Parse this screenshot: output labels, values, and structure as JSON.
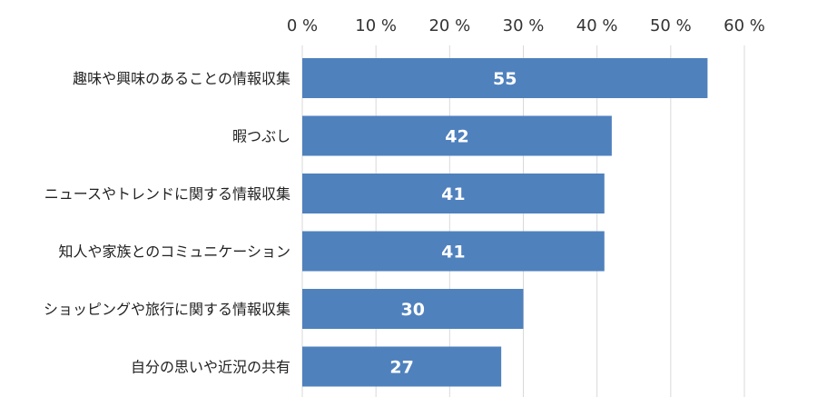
{
  "chart_data": {
    "type": "bar",
    "orientation": "horizontal",
    "categories": [
      "趣味や興味のあることの情報収集",
      "暇つぶし",
      "ニュースやトレンドに関する情報収集",
      "知人や家族とのコミュニケーション",
      "ショッピングや旅行に関する情報収集",
      "自分の思いや近況の共有"
    ],
    "values": [
      55,
      42,
      41,
      41,
      30,
      27
    ],
    "data_labels": [
      "55",
      "42",
      "41",
      "41",
      "30",
      "27"
    ],
    "xlim": [
      0,
      60
    ],
    "x_ticks": [
      0,
      10,
      20,
      30,
      40,
      50,
      60
    ],
    "x_tick_labels": [
      "0 %",
      "10 %",
      "20 %",
      "30 %",
      "40 %",
      "50 %",
      "60 %"
    ],
    "axis_position": "top",
    "grid": true,
    "title": "",
    "xlabel": "",
    "ylabel": "",
    "colors": {
      "bar": "#4f81bd",
      "grid": "#d9d9d9"
    }
  }
}
